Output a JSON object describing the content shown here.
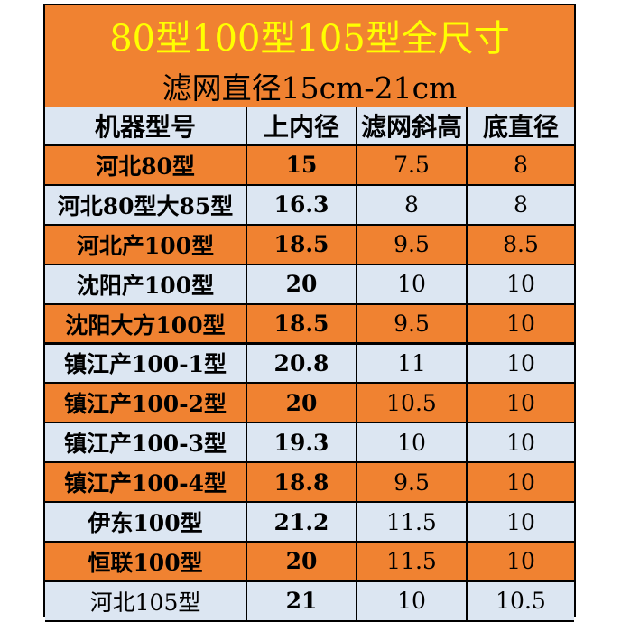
{
  "title": "80型100型105型全尺寸",
  "subtitle": "滤网直径15cm-21cm",
  "colors": {
    "orange": "#F08231",
    "light_blue": "#DCE6F2",
    "title_text": "#FFFF00"
  },
  "table": {
    "headers": [
      "机器型号",
      "上内径",
      "滤网斜高",
      "底直径"
    ],
    "rows": [
      {
        "model": "河北80型",
        "inner": "15",
        "height": "7.5",
        "bottom": "8",
        "style": "orange"
      },
      {
        "model": "河北80型大85型",
        "inner": "16.3",
        "height": "8",
        "bottom": "8",
        "style": "blue"
      },
      {
        "model": "河北产100型",
        "inner": "18.5",
        "height": "9.5",
        "bottom": "8.5",
        "style": "orange"
      },
      {
        "model": "沈阳产100型",
        "inner": "20",
        "height": "10",
        "bottom": "10",
        "style": "blue"
      },
      {
        "model": "沈阳大方100型",
        "inner": "18.5",
        "height": "9.5",
        "bottom": "10",
        "style": "orange"
      },
      {
        "model": "镇江产100-1型",
        "inner": "20.8",
        "height": "11",
        "bottom": "10",
        "style": "blue"
      },
      {
        "model": "镇江产100-2型",
        "inner": "20",
        "height": "10.5",
        "bottom": "10",
        "style": "orange"
      },
      {
        "model": "镇江产100-3型",
        "inner": "19.3",
        "height": "10",
        "bottom": "10",
        "style": "blue"
      },
      {
        "model": "镇江产100-4型",
        "inner": "18.8",
        "height": "9.5",
        "bottom": "10",
        "style": "orange"
      },
      {
        "model": "伊东100型",
        "inner": "21.2",
        "height": "11.5",
        "bottom": "10",
        "style": "blue"
      },
      {
        "model": "恒联100型",
        "inner": "20",
        "height": "11.5",
        "bottom": "10",
        "style": "orange"
      },
      {
        "model": "河北105型",
        "inner": "21",
        "height": "10",
        "bottom": "10.5",
        "style": "blue"
      }
    ]
  }
}
